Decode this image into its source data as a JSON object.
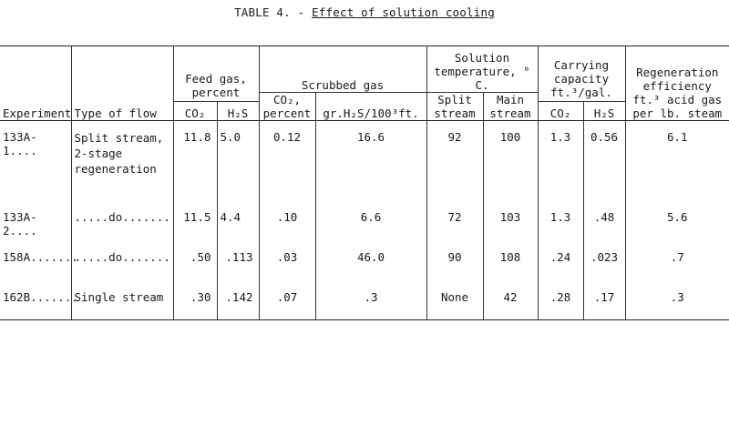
{
  "title": {
    "label": "TABLE 4. -",
    "subtitle": "Effect of solution cooling"
  },
  "headers": {
    "experiment": "Experiment",
    "type_of_flow": "Type of flow",
    "feed_gas_group": "Feed gas, percent",
    "feed_co2": "CO₂",
    "feed_h2s": "H₂S",
    "scrubbed_gas_group": "Scrubbed gas",
    "scrubbed_co2": "CO₂, percent",
    "scrubbed_h2s": "gr.H₂S/100³ft.",
    "solution_temp_group": "Solution temperature, ° C.",
    "split_stream": "Split stream",
    "main_stream": "Main stream",
    "carrying_group": "Carrying capacity ft.³/gal.",
    "carrying_co2": "CO₂",
    "carrying_h2s": "H₂S",
    "regeneration": "Regeneration efficiency ft.³ acid gas per lb. steam"
  },
  "rows": [
    {
      "experiment": "133A-1....",
      "type_of_flow": "Split stream,\n2-stage\nregeneration",
      "feed_co2": "11.8",
      "feed_h2s": "5.0",
      "scrubbed_co2": "0.12",
      "scrubbed_h2s": "16.6",
      "split_stream": "92",
      "main_stream": "100",
      "carrying_co2": "1.3",
      "carrying_h2s": "0.56",
      "regeneration": "6.1"
    },
    {
      "experiment": "133A-2....",
      "type_of_flow": ".....do.......",
      "feed_co2": "11.5",
      "feed_h2s": "4.4",
      "scrubbed_co2": ".10",
      "scrubbed_h2s": "6.6",
      "split_stream": "72",
      "main_stream": "103",
      "carrying_co2": "1.3",
      "carrying_h2s": ".48",
      "regeneration": "5.6"
    },
    {
      "experiment": "158A.......",
      "type_of_flow": ".....do.......",
      "feed_co2": ".50",
      "feed_h2s": ".113",
      "scrubbed_co2": ".03",
      "scrubbed_h2s": "46.0",
      "split_stream": "90",
      "main_stream": "108",
      "carrying_co2": ".24",
      "carrying_h2s": ".023",
      "regeneration": ".7"
    },
    {
      "experiment": "162B.......",
      "type_of_flow": "Single stream",
      "feed_co2": ".30",
      "feed_h2s": ".142",
      "scrubbed_co2": ".07",
      "scrubbed_h2s": ".3",
      "split_stream": "None",
      "main_stream": "42",
      "carrying_co2": ".28",
      "carrying_h2s": ".17",
      "regeneration": ".3"
    }
  ]
}
